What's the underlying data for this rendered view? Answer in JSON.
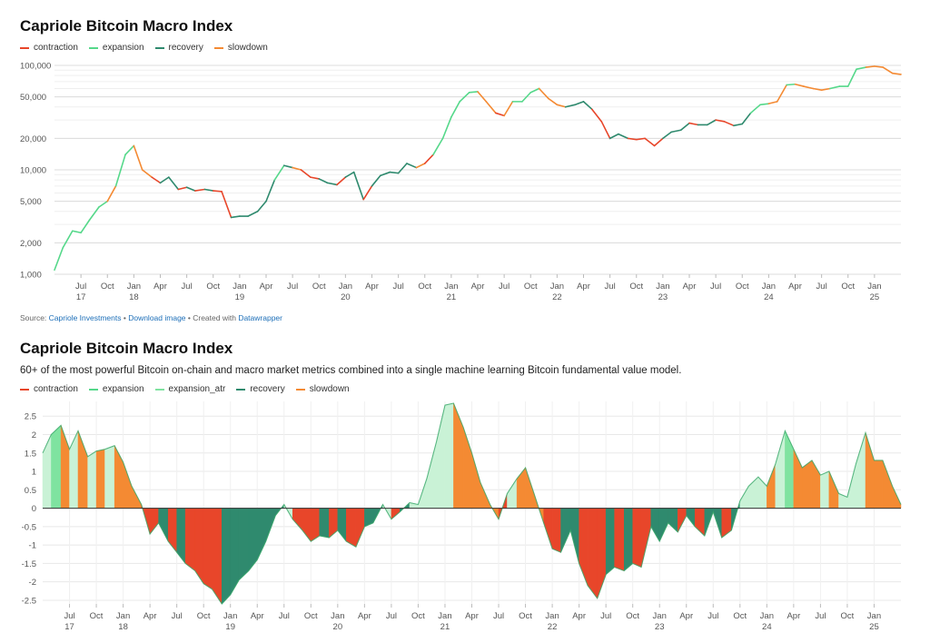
{
  "colors": {
    "contraction": "#e8462a",
    "expansion": "#55d88a",
    "expansion_fill": "#c9f2d6",
    "expansion_atr": "#7fe3a0",
    "recovery": "#2f8a6e",
    "slowdown": "#f48a33",
    "grid": "#e6e6e6",
    "axis_text": "#555555"
  },
  "top": {
    "title": "Capriole Bitcoin Macro Index",
    "legend": [
      "contraction",
      "expansion",
      "recovery",
      "slowdown"
    ],
    "footer": {
      "source_label": "Source: ",
      "source_link": "Capriole Investments",
      "sep1": " • ",
      "download_link": "Download image",
      "created_with": " • Created with ",
      "dw_link": "Datawrapper"
    }
  },
  "bottom": {
    "title": "Capriole Bitcoin Macro Index",
    "subtitle": "60+ of the most powerful Bitcoin on-chain and macro market metrics combined into a single machine learning Bitcoin fundamental value model.",
    "legend": [
      "contraction",
      "expansion",
      "expansion_atr",
      "recovery",
      "slowdown"
    ]
  },
  "x_ticks": [
    {
      "t": 2017.5,
      "m": "Jul",
      "y": "17"
    },
    {
      "t": 2017.75,
      "m": "Oct",
      "y": ""
    },
    {
      "t": 2018.0,
      "m": "Jan",
      "y": "18"
    },
    {
      "t": 2018.25,
      "m": "Apr",
      "y": ""
    },
    {
      "t": 2018.5,
      "m": "Jul",
      "y": ""
    },
    {
      "t": 2018.75,
      "m": "Oct",
      "y": ""
    },
    {
      "t": 2019.0,
      "m": "Jan",
      "y": "19"
    },
    {
      "t": 2019.25,
      "m": "Apr",
      "y": ""
    },
    {
      "t": 2019.5,
      "m": "Jul",
      "y": ""
    },
    {
      "t": 2019.75,
      "m": "Oct",
      "y": ""
    },
    {
      "t": 2020.0,
      "m": "Jan",
      "y": "20"
    },
    {
      "t": 2020.25,
      "m": "Apr",
      "y": ""
    },
    {
      "t": 2020.5,
      "m": "Jul",
      "y": ""
    },
    {
      "t": 2020.75,
      "m": "Oct",
      "y": ""
    },
    {
      "t": 2021.0,
      "m": "Jan",
      "y": "21"
    },
    {
      "t": 2021.25,
      "m": "Apr",
      "y": ""
    },
    {
      "t": 2021.5,
      "m": "Jul",
      "y": ""
    },
    {
      "t": 2021.75,
      "m": "Oct",
      "y": ""
    },
    {
      "t": 2022.0,
      "m": "Jan",
      "y": "22"
    },
    {
      "t": 2022.25,
      "m": "Apr",
      "y": ""
    },
    {
      "t": 2022.5,
      "m": "Jul",
      "y": ""
    },
    {
      "t": 2022.75,
      "m": "Oct",
      "y": ""
    },
    {
      "t": 2023.0,
      "m": "Jan",
      "y": "23"
    },
    {
      "t": 2023.25,
      "m": "Apr",
      "y": ""
    },
    {
      "t": 2023.5,
      "m": "Jul",
      "y": ""
    },
    {
      "t": 2023.75,
      "m": "Oct",
      "y": ""
    },
    {
      "t": 2024.0,
      "m": "Jan",
      "y": "24"
    },
    {
      "t": 2024.25,
      "m": "Apr",
      "y": ""
    },
    {
      "t": 2024.5,
      "m": "Jul",
      "y": ""
    },
    {
      "t": 2024.75,
      "m": "Oct",
      "y": ""
    },
    {
      "t": 2025.0,
      "m": "Jan",
      "y": "25"
    }
  ],
  "chart_data": [
    {
      "type": "line",
      "title": "Capriole Bitcoin Macro Index",
      "y_scale": "log",
      "ylim": [
        1000,
        100000
      ],
      "y_ticks": [
        {
          "v": 1000,
          "label": "1,000"
        },
        {
          "v": 2000,
          "label": "2,000"
        },
        {
          "v": 5000,
          "label": "5,000"
        },
        {
          "v": 10000,
          "label": "10,000"
        },
        {
          "v": 20000,
          "label": "20,000"
        },
        {
          "v": 50000,
          "label": "50,000"
        },
        {
          "v": 100000,
          "label": "100,000"
        }
      ],
      "x_range": [
        "2017-04",
        "2025-05"
      ],
      "x": [
        2017.25,
        2017.33,
        2017.42,
        2017.5,
        2017.58,
        2017.67,
        2017.75,
        2017.83,
        2017.92,
        2018.0,
        2018.08,
        2018.17,
        2018.25,
        2018.33,
        2018.42,
        2018.5,
        2018.58,
        2018.67,
        2018.75,
        2018.83,
        2018.92,
        2019.0,
        2019.08,
        2019.17,
        2019.25,
        2019.33,
        2019.42,
        2019.5,
        2019.58,
        2019.67,
        2019.75,
        2019.83,
        2019.92,
        2020.0,
        2020.08,
        2020.17,
        2020.25,
        2020.33,
        2020.42,
        2020.5,
        2020.58,
        2020.67,
        2020.75,
        2020.83,
        2020.92,
        2021.0,
        2021.08,
        2021.17,
        2021.25,
        2021.33,
        2021.42,
        2021.5,
        2021.58,
        2021.67,
        2021.75,
        2021.83,
        2021.92,
        2022.0,
        2022.08,
        2022.17,
        2022.25,
        2022.33,
        2022.42,
        2022.5,
        2022.58,
        2022.67,
        2022.75,
        2022.83,
        2022.92,
        2023.0,
        2023.08,
        2023.17,
        2023.25,
        2023.33,
        2023.42,
        2023.5,
        2023.58,
        2023.67,
        2023.75,
        2023.83,
        2023.92,
        2024.0,
        2024.08,
        2024.17,
        2024.25,
        2024.33,
        2024.42,
        2024.5,
        2024.58,
        2024.67,
        2024.75,
        2024.83,
        2024.92,
        2025.0,
        2025.08,
        2025.17,
        2025.25
      ],
      "values": [
        1100,
        1800,
        2600,
        2500,
        3300,
        4400,
        5000,
        7000,
        14000,
        17000,
        10000,
        8500,
        7500,
        8500,
        6500,
        6800,
        6300,
        6500,
        6300,
        6200,
        3500,
        3600,
        3600,
        4000,
        5000,
        8000,
        11000,
        10500,
        10000,
        8500,
        8200,
        7500,
        7200,
        8500,
        9500,
        5200,
        7000,
        8800,
        9500,
        9300,
        11500,
        10500,
        11500,
        14000,
        20000,
        32000,
        45000,
        55000,
        56000,
        45000,
        35000,
        33000,
        45000,
        45000,
        55000,
        60000,
        48000,
        42000,
        40000,
        42000,
        45000,
        38000,
        29000,
        20000,
        22000,
        20000,
        19500,
        20000,
        17000,
        20000,
        23000,
        24000,
        28000,
        27000,
        27000,
        30000,
        29000,
        26500,
        27500,
        35000,
        42000,
        43000,
        45000,
        65000,
        66000,
        63000,
        60000,
        58000,
        60000,
        63000,
        63000,
        92000,
        96000,
        98000,
        96000,
        84000,
        82000
      ],
      "states": [
        "expansion",
        "expansion",
        "expansion",
        "expansion",
        "expansion",
        "expansion",
        "slowdown",
        "expansion",
        "expansion",
        "slowdown",
        "slowdown",
        "contraction",
        "recovery",
        "recovery",
        "contraction",
        "recovery",
        "contraction",
        "recovery",
        "contraction",
        "contraction",
        "recovery",
        "recovery",
        "recovery",
        "recovery",
        "recovery",
        "expansion",
        "recovery",
        "slowdown",
        "contraction",
        "contraction",
        "recovery",
        "recovery",
        "contraction",
        "recovery",
        "recovery",
        "contraction",
        "recovery",
        "recovery",
        "recovery",
        "recovery",
        "recovery",
        "slowdown",
        "contraction",
        "expansion",
        "expansion",
        "expansion",
        "expansion",
        "expansion",
        "slowdown",
        "slowdown",
        "contraction",
        "slowdown",
        "expansion",
        "expansion",
        "expansion",
        "slowdown",
        "slowdown",
        "slowdown",
        "recovery",
        "recovery",
        "recovery",
        "contraction",
        "contraction",
        "recovery",
        "recovery",
        "contraction",
        "contraction",
        "contraction",
        "contraction",
        "recovery",
        "recovery",
        "recovery",
        "contraction",
        "recovery",
        "recovery",
        "contraction",
        "contraction",
        "recovery",
        "recovery",
        "expansion",
        "expansion",
        "slowdown",
        "slowdown",
        "expansion",
        "slowdown",
        "slowdown",
        "slowdown",
        "slowdown",
        "expansion",
        "expansion",
        "expansion",
        "expansion",
        "slowdown",
        "slowdown",
        "slowdown",
        "slowdown",
        "slowdown"
      ]
    },
    {
      "type": "area",
      "title": "Capriole Bitcoin Macro Index",
      "subtitle": "60+ of the most powerful Bitcoin on-chain and macro market metrics combined into a single machine learning Bitcoin fundamental value model.",
      "ylim": [
        -2.6,
        2.9
      ],
      "y_ticks": [
        {
          "v": 2.5,
          "label": "2.5"
        },
        {
          "v": 2,
          "label": "2"
        },
        {
          "v": 1.5,
          "label": "1.5"
        },
        {
          "v": 1,
          "label": "1"
        },
        {
          "v": 0.5,
          "label": "0.5"
        },
        {
          "v": 0,
          "label": "0"
        },
        {
          "v": -0.5,
          "label": "-0.5"
        },
        {
          "v": -1,
          "label": "-1"
        },
        {
          "v": -1.5,
          "label": "-1.5"
        },
        {
          "v": -2,
          "label": "-2"
        },
        {
          "v": -2.5,
          "label": "-2.5"
        }
      ],
      "x": [
        2017.25,
        2017.33,
        2017.42,
        2017.5,
        2017.58,
        2017.67,
        2017.75,
        2017.83,
        2017.92,
        2018.0,
        2018.08,
        2018.17,
        2018.25,
        2018.33,
        2018.42,
        2018.5,
        2018.58,
        2018.67,
        2018.75,
        2018.83,
        2018.92,
        2019.0,
        2019.08,
        2019.17,
        2019.25,
        2019.33,
        2019.42,
        2019.5,
        2019.58,
        2019.67,
        2019.75,
        2019.83,
        2019.92,
        2020.0,
        2020.08,
        2020.17,
        2020.25,
        2020.33,
        2020.42,
        2020.5,
        2020.58,
        2020.67,
        2020.75,
        2020.83,
        2020.92,
        2021.0,
        2021.08,
        2021.17,
        2021.25,
        2021.33,
        2021.42,
        2021.5,
        2021.58,
        2021.67,
        2021.75,
        2021.83,
        2021.92,
        2022.0,
        2022.08,
        2022.17,
        2022.25,
        2022.33,
        2022.42,
        2022.5,
        2022.58,
        2022.67,
        2022.75,
        2022.83,
        2022.92,
        2023.0,
        2023.08,
        2023.17,
        2023.25,
        2023.33,
        2023.42,
        2023.5,
        2023.58,
        2023.67,
        2023.75,
        2023.83,
        2023.92,
        2024.0,
        2024.08,
        2024.17,
        2024.25,
        2024.33,
        2024.42,
        2024.5,
        2024.58,
        2024.67,
        2024.75,
        2024.83,
        2024.92,
        2025.0,
        2025.08,
        2025.17,
        2025.25
      ],
      "values": [
        1.5,
        2.0,
        2.25,
        1.6,
        2.1,
        1.4,
        1.55,
        1.6,
        1.7,
        1.25,
        0.6,
        0.1,
        -0.7,
        -0.4,
        -0.9,
        -1.2,
        -1.5,
        -1.7,
        -2.05,
        -2.2,
        -2.6,
        -2.35,
        -1.95,
        -1.7,
        -1.4,
        -0.9,
        -0.2,
        0.1,
        -0.3,
        -0.6,
        -0.9,
        -0.75,
        -0.8,
        -0.6,
        -0.9,
        -1.05,
        -0.5,
        -0.4,
        0.1,
        -0.3,
        -0.1,
        0.15,
        0.1,
        0.8,
        1.8,
        2.8,
        2.85,
        2.2,
        1.5,
        0.7,
        0.1,
        -0.3,
        0.4,
        0.8,
        1.1,
        0.4,
        -0.4,
        -1.1,
        -1.2,
        -0.6,
        -1.5,
        -2.1,
        -2.45,
        -1.8,
        -1.6,
        -1.7,
        -1.5,
        -1.6,
        -0.5,
        -0.9,
        -0.4,
        -0.65,
        -0.2,
        -0.5,
        -0.75,
        -0.1,
        -0.8,
        -0.6,
        0.2,
        0.6,
        0.85,
        0.6,
        1.2,
        2.1,
        1.6,
        1.1,
        1.3,
        0.9,
        1.0,
        0.4,
        0.3,
        1.2,
        2.05,
        1.3,
        1.3,
        0.6,
        0.1
      ],
      "states": [
        "expansion",
        "expansion_atr",
        "slowdown",
        "expansion",
        "slowdown",
        "expansion",
        "slowdown",
        "expansion",
        "slowdown",
        "slowdown",
        "slowdown",
        "contraction",
        "contraction",
        "recovery",
        "contraction",
        "recovery",
        "contraction",
        "contraction",
        "contraction",
        "contraction",
        "recovery",
        "recovery",
        "recovery",
        "recovery",
        "recovery",
        "recovery",
        "recovery",
        "expansion",
        "contraction",
        "contraction",
        "contraction",
        "recovery",
        "contraction",
        "recovery",
        "contraction",
        "contraction",
        "recovery",
        "recovery",
        "expansion",
        "contraction",
        "recovery",
        "expansion",
        "expansion",
        "expansion",
        "expansion",
        "expansion",
        "slowdown",
        "slowdown",
        "slowdown",
        "slowdown",
        "slowdown",
        "contraction",
        "expansion",
        "slowdown",
        "slowdown",
        "slowdown",
        "contraction",
        "contraction",
        "recovery",
        "recovery",
        "contraction",
        "contraction",
        "contraction",
        "recovery",
        "contraction",
        "recovery",
        "contraction",
        "contraction",
        "recovery",
        "recovery",
        "recovery",
        "contraction",
        "recovery",
        "contraction",
        "recovery",
        "recovery",
        "contraction",
        "recovery",
        "expansion",
        "expansion",
        "expansion",
        "slowdown",
        "expansion",
        "expansion_atr",
        "slowdown",
        "slowdown",
        "slowdown",
        "expansion",
        "slowdown",
        "expansion",
        "expansion",
        "expansion",
        "slowdown",
        "slowdown",
        "slowdown",
        "slowdown",
        "slowdown"
      ]
    }
  ]
}
